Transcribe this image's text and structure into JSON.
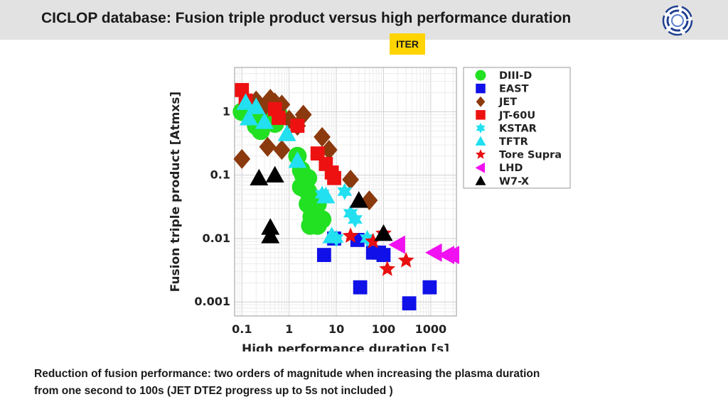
{
  "header": {
    "title": "CICLOP database:  Fusion triple product versus high performance duration",
    "logo_icon": "circular-logo-icon",
    "badge": "ITER"
  },
  "colors": {
    "header_bg": "#e2e2e2",
    "badge_bg": "#ffd400"
  },
  "footer": {
    "line1": "Reduction of fusion performance:  two orders of magnitude when increasing the plasma duration",
    "line2": "from one second to 100s (JET DTE2 progress up to 5s not included )"
  },
  "chart_data": {
    "type": "scatter",
    "xlabel": "High performance duration [s]",
    "ylabel": "Fusion triple product [Atmxs]",
    "xscale": "log",
    "yscale": "log",
    "xlim": [
      0.07,
      3500
    ],
    "ylim": [
      0.0006,
      5
    ],
    "xticks": [
      0.1,
      1,
      10,
      100,
      1000
    ],
    "xtick_labels": [
      "0.1",
      "1",
      "10",
      "100",
      "1000"
    ],
    "yticks": [
      0.001,
      0.01,
      0.1,
      1
    ],
    "ytick_labels": [
      "0.001",
      "0.01",
      "0.1",
      "1"
    ],
    "grid": true,
    "legend_position": "top-right",
    "series": [
      {
        "name": "DIII-D",
        "marker": "circle",
        "color": "#22e022",
        "points": [
          [
            0.1,
            1
          ],
          [
            0.15,
            0.85
          ],
          [
            0.2,
            0.6
          ],
          [
            0.25,
            0.5
          ],
          [
            0.3,
            0.7
          ],
          [
            0.5,
            0.65
          ],
          [
            0.6,
            0.9
          ],
          [
            1.5,
            0.2
          ],
          [
            1.8,
            0.12
          ],
          [
            2,
            0.1
          ],
          [
            2.2,
            0.08
          ],
          [
            1.8,
            0.065
          ],
          [
            2.5,
            0.055
          ],
          [
            3,
            0.045
          ],
          [
            2.5,
            0.035
          ],
          [
            3,
            0.03
          ],
          [
            4,
            0.035
          ],
          [
            3,
            0.022
          ],
          [
            3.5,
            0.018
          ],
          [
            2.8,
            0.016
          ],
          [
            4,
            0.016
          ],
          [
            5,
            0.02
          ],
          [
            2.5,
            0.09
          ]
        ]
      },
      {
        "name": "EAST",
        "marker": "square",
        "color": "#1010e8",
        "points": [
          [
            5.5,
            0.0055
          ],
          [
            9,
            0.01
          ],
          [
            28,
            0.0095
          ],
          [
            32,
            0.0017
          ],
          [
            60,
            0.006
          ],
          [
            80,
            0.006
          ],
          [
            100,
            0.0055
          ],
          [
            350,
            0.00095
          ],
          [
            950,
            0.0017
          ]
        ]
      },
      {
        "name": "JET",
        "marker": "diamond",
        "color": "#8b3a0e",
        "points": [
          [
            0.1,
            0.18
          ],
          [
            0.2,
            1.5
          ],
          [
            0.3,
            1.2
          ],
          [
            0.35,
            0.28
          ],
          [
            0.4,
            1.6
          ],
          [
            0.5,
            1.4
          ],
          [
            0.7,
            1.3
          ],
          [
            0.7,
            0.25
          ],
          [
            1,
            0.75
          ],
          [
            1.5,
            0.6
          ],
          [
            2,
            0.9
          ],
          [
            5,
            0.4
          ],
          [
            7,
            0.25
          ],
          [
            20,
            0.085
          ],
          [
            50,
            0.04
          ]
        ]
      },
      {
        "name": "JT-60U",
        "marker": "square",
        "color": "#ee1111",
        "points": [
          [
            0.1,
            2.2
          ],
          [
            0.12,
            1.5
          ],
          [
            0.5,
            1.1
          ],
          [
            0.6,
            0.8
          ],
          [
            1.5,
            0.6
          ],
          [
            4,
            0.22
          ],
          [
            6,
            0.15
          ],
          [
            8,
            0.11
          ],
          [
            9,
            0.09
          ]
        ]
      },
      {
        "name": "KSTAR",
        "marker": "star6",
        "color": "#22e0f0",
        "points": [
          [
            5,
            0.05
          ],
          [
            15,
            0.055
          ],
          [
            20,
            0.025
          ],
          [
            25,
            0.02
          ],
          [
            10,
            0.01
          ],
          [
            45,
            0.01
          ]
        ]
      },
      {
        "name": "TFTR",
        "marker": "triangle",
        "color": "#22e0f0",
        "points": [
          [
            0.12,
            1.4
          ],
          [
            0.14,
            0.8
          ],
          [
            0.2,
            1.2
          ],
          [
            0.3,
            0.7
          ],
          [
            0.9,
            0.45
          ],
          [
            1.5,
            0.17
          ],
          [
            6,
            0.047
          ],
          [
            8,
            0.011
          ]
        ]
      },
      {
        "name": "Tore Supra",
        "marker": "star5",
        "color": "#e81010",
        "points": [
          [
            20,
            0.011
          ],
          [
            60,
            0.009
          ],
          [
            100,
            0.012
          ],
          [
            120,
            0.0033
          ],
          [
            300,
            0.0045
          ]
        ]
      },
      {
        "name": "LHD",
        "marker": "lefttriangle",
        "color": "#f010f0",
        "points": [
          [
            200,
            0.008
          ],
          [
            1200,
            0.006
          ],
          [
            2200,
            0.0055
          ],
          [
            2800,
            0.0055
          ]
        ]
      },
      {
        "name": "W7-X",
        "marker": "triangle",
        "color": "#000000",
        "points": [
          [
            0.23,
            0.09
          ],
          [
            0.5,
            0.1
          ],
          [
            0.4,
            0.015
          ],
          [
            0.4,
            0.011
          ],
          [
            30,
            0.04
          ],
          [
            100,
            0.012
          ]
        ]
      }
    ]
  }
}
